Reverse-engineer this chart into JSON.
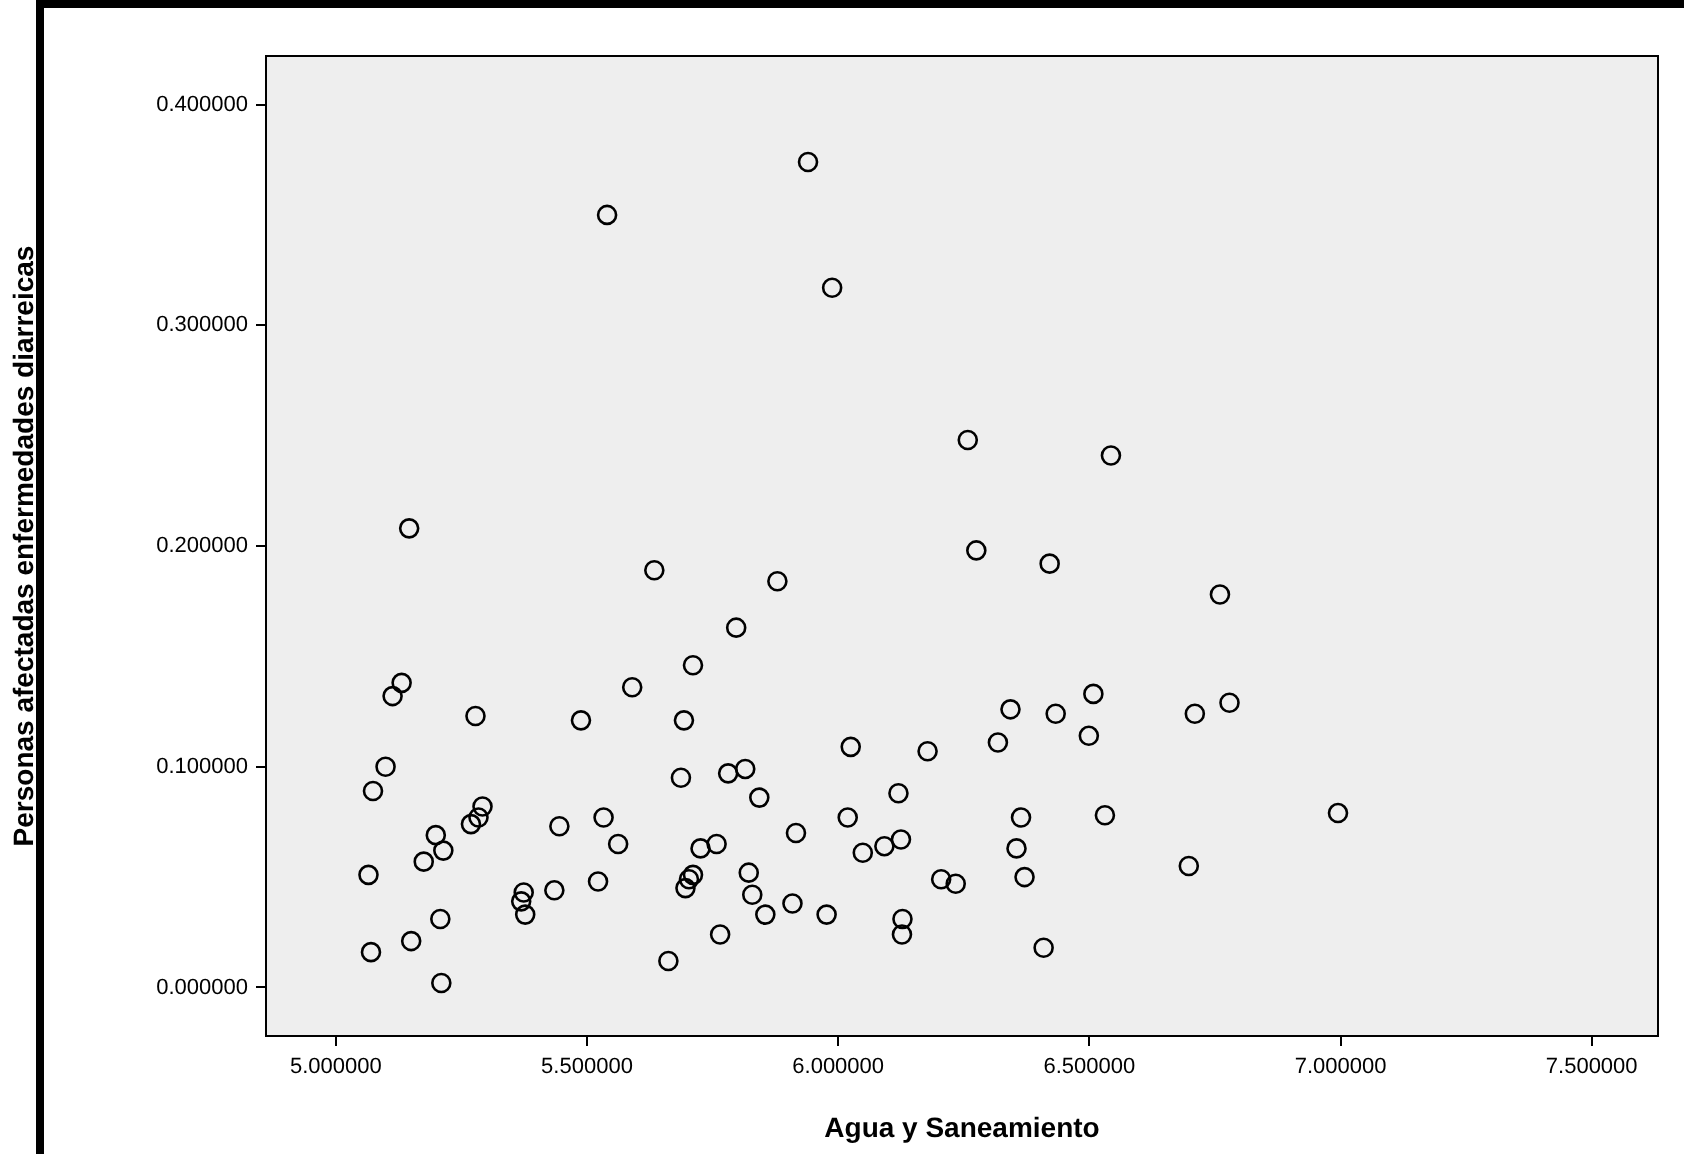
{
  "chart_data": {
    "type": "scatter",
    "xlabel": "Agua y Saneamiento",
    "ylabel": "Personas afectadas enfermedades diarreicas",
    "xlim": [
      4.861,
      7.632
    ],
    "ylim": [
      -0.022,
      0.422
    ],
    "xticks": [
      {
        "value": 5,
        "label": "5.000000"
      },
      {
        "value": 5.5,
        "label": "5.500000"
      },
      {
        "value": 6,
        "label": "6.000000"
      },
      {
        "value": 6.5,
        "label": "6.500000"
      },
      {
        "value": 7,
        "label": "7.000000"
      },
      {
        "value": 7.5,
        "label": "7.500000"
      }
    ],
    "yticks": [
      {
        "value": 0,
        "label": "0.000000"
      },
      {
        "value": 0.1,
        "label": "0.100000"
      },
      {
        "value": 0.2,
        "label": "0.200000"
      },
      {
        "value": 0.3,
        "label": "0.300000"
      },
      {
        "value": 0.4,
        "label": "0.400000"
      }
    ],
    "grid": false,
    "legend": false,
    "marker": "circle",
    "series": [
      {
        "color": "#000000",
        "x": [
          5.94,
          5.54,
          5.988,
          5.146,
          6.258,
          6.543,
          6.275,
          6.421,
          6.76,
          6.508,
          6.343,
          6.433,
          6.71,
          6.779,
          6.318,
          6.499,
          6.364,
          6.531,
          6.995,
          6.355,
          6.371,
          6.698,
          6.205,
          6.234,
          6.409,
          5.634,
          5.879,
          5.797,
          5.711,
          5.59,
          5.131,
          5.113,
          5.278,
          5.488,
          5.693,
          6.025,
          6.178,
          5.099,
          5.074,
          5.687,
          5.781,
          5.815,
          5.843,
          6.12,
          5.292,
          5.284,
          5.269,
          5.199,
          5.214,
          5.175,
          5.065,
          5.445,
          5.533,
          5.562,
          5.726,
          5.758,
          5.916,
          6.019,
          6.049,
          6.092,
          6.125,
          5.711,
          5.703,
          5.696,
          5.822,
          5.829,
          5.522,
          5.435,
          5.374,
          5.369,
          5.377,
          5.855,
          5.909,
          5.977,
          6.128,
          6.127,
          5.208,
          5.15,
          5.07,
          5.765,
          5.662,
          5.21
        ],
        "values": [
          0.374,
          0.35,
          0.317,
          0.208,
          0.248,
          0.241,
          0.198,
          0.192,
          0.178,
          0.133,
          0.126,
          0.124,
          0.124,
          0.129,
          0.111,
          0.114,
          0.077,
          0.078,
          0.079,
          0.063,
          0.05,
          0.055,
          0.049,
          0.047,
          0.018,
          0.189,
          0.184,
          0.163,
          0.146,
          0.136,
          0.138,
          0.132,
          0.123,
          0.121,
          0.121,
          0.109,
          0.107,
          0.1,
          0.089,
          0.095,
          0.097,
          0.099,
          0.086,
          0.088,
          0.082,
          0.077,
          0.074,
          0.069,
          0.062,
          0.057,
          0.051,
          0.073,
          0.077,
          0.065,
          0.063,
          0.065,
          0.07,
          0.077,
          0.061,
          0.064,
          0.067,
          0.051,
          0.049,
          0.045,
          0.052,
          0.042,
          0.048,
          0.044,
          0.043,
          0.039,
          0.033,
          0.033,
          0.038,
          0.033,
          0.031,
          0.024,
          0.031,
          0.021,
          0.016,
          0.024,
          0.012,
          0.002
        ]
      }
    ]
  }
}
